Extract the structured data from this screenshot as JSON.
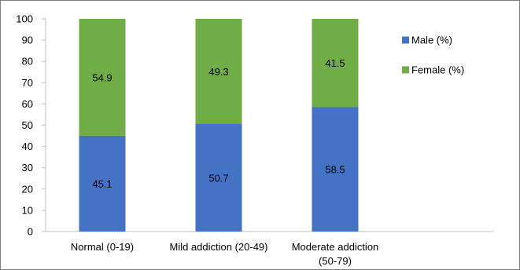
{
  "chart_data": {
    "type": "bar",
    "stacked": true,
    "categories": [
      "Normal (0-19)",
      "Mild addiction (20-49)",
      "Moderate addiction (50-79)"
    ],
    "category_lines": [
      [
        "Normal (0-19)"
      ],
      [
        "Mild addiction (20-49)"
      ],
      [
        "Moderate addiction",
        "(50-79)"
      ]
    ],
    "series": [
      {
        "name": "Male (%)",
        "values": [
          45.1,
          50.7,
          58.5
        ],
        "color": "#4472C4"
      },
      {
        "name": "Female (%)",
        "values": [
          54.9,
          49.3,
          41.5
        ],
        "color": "#70AD47"
      }
    ],
    "ylim": [
      0,
      100
    ],
    "yticks": [
      0,
      10,
      20,
      30,
      40,
      50,
      60,
      70,
      80,
      90,
      100
    ],
    "grid": false,
    "legend_position": "right"
  }
}
